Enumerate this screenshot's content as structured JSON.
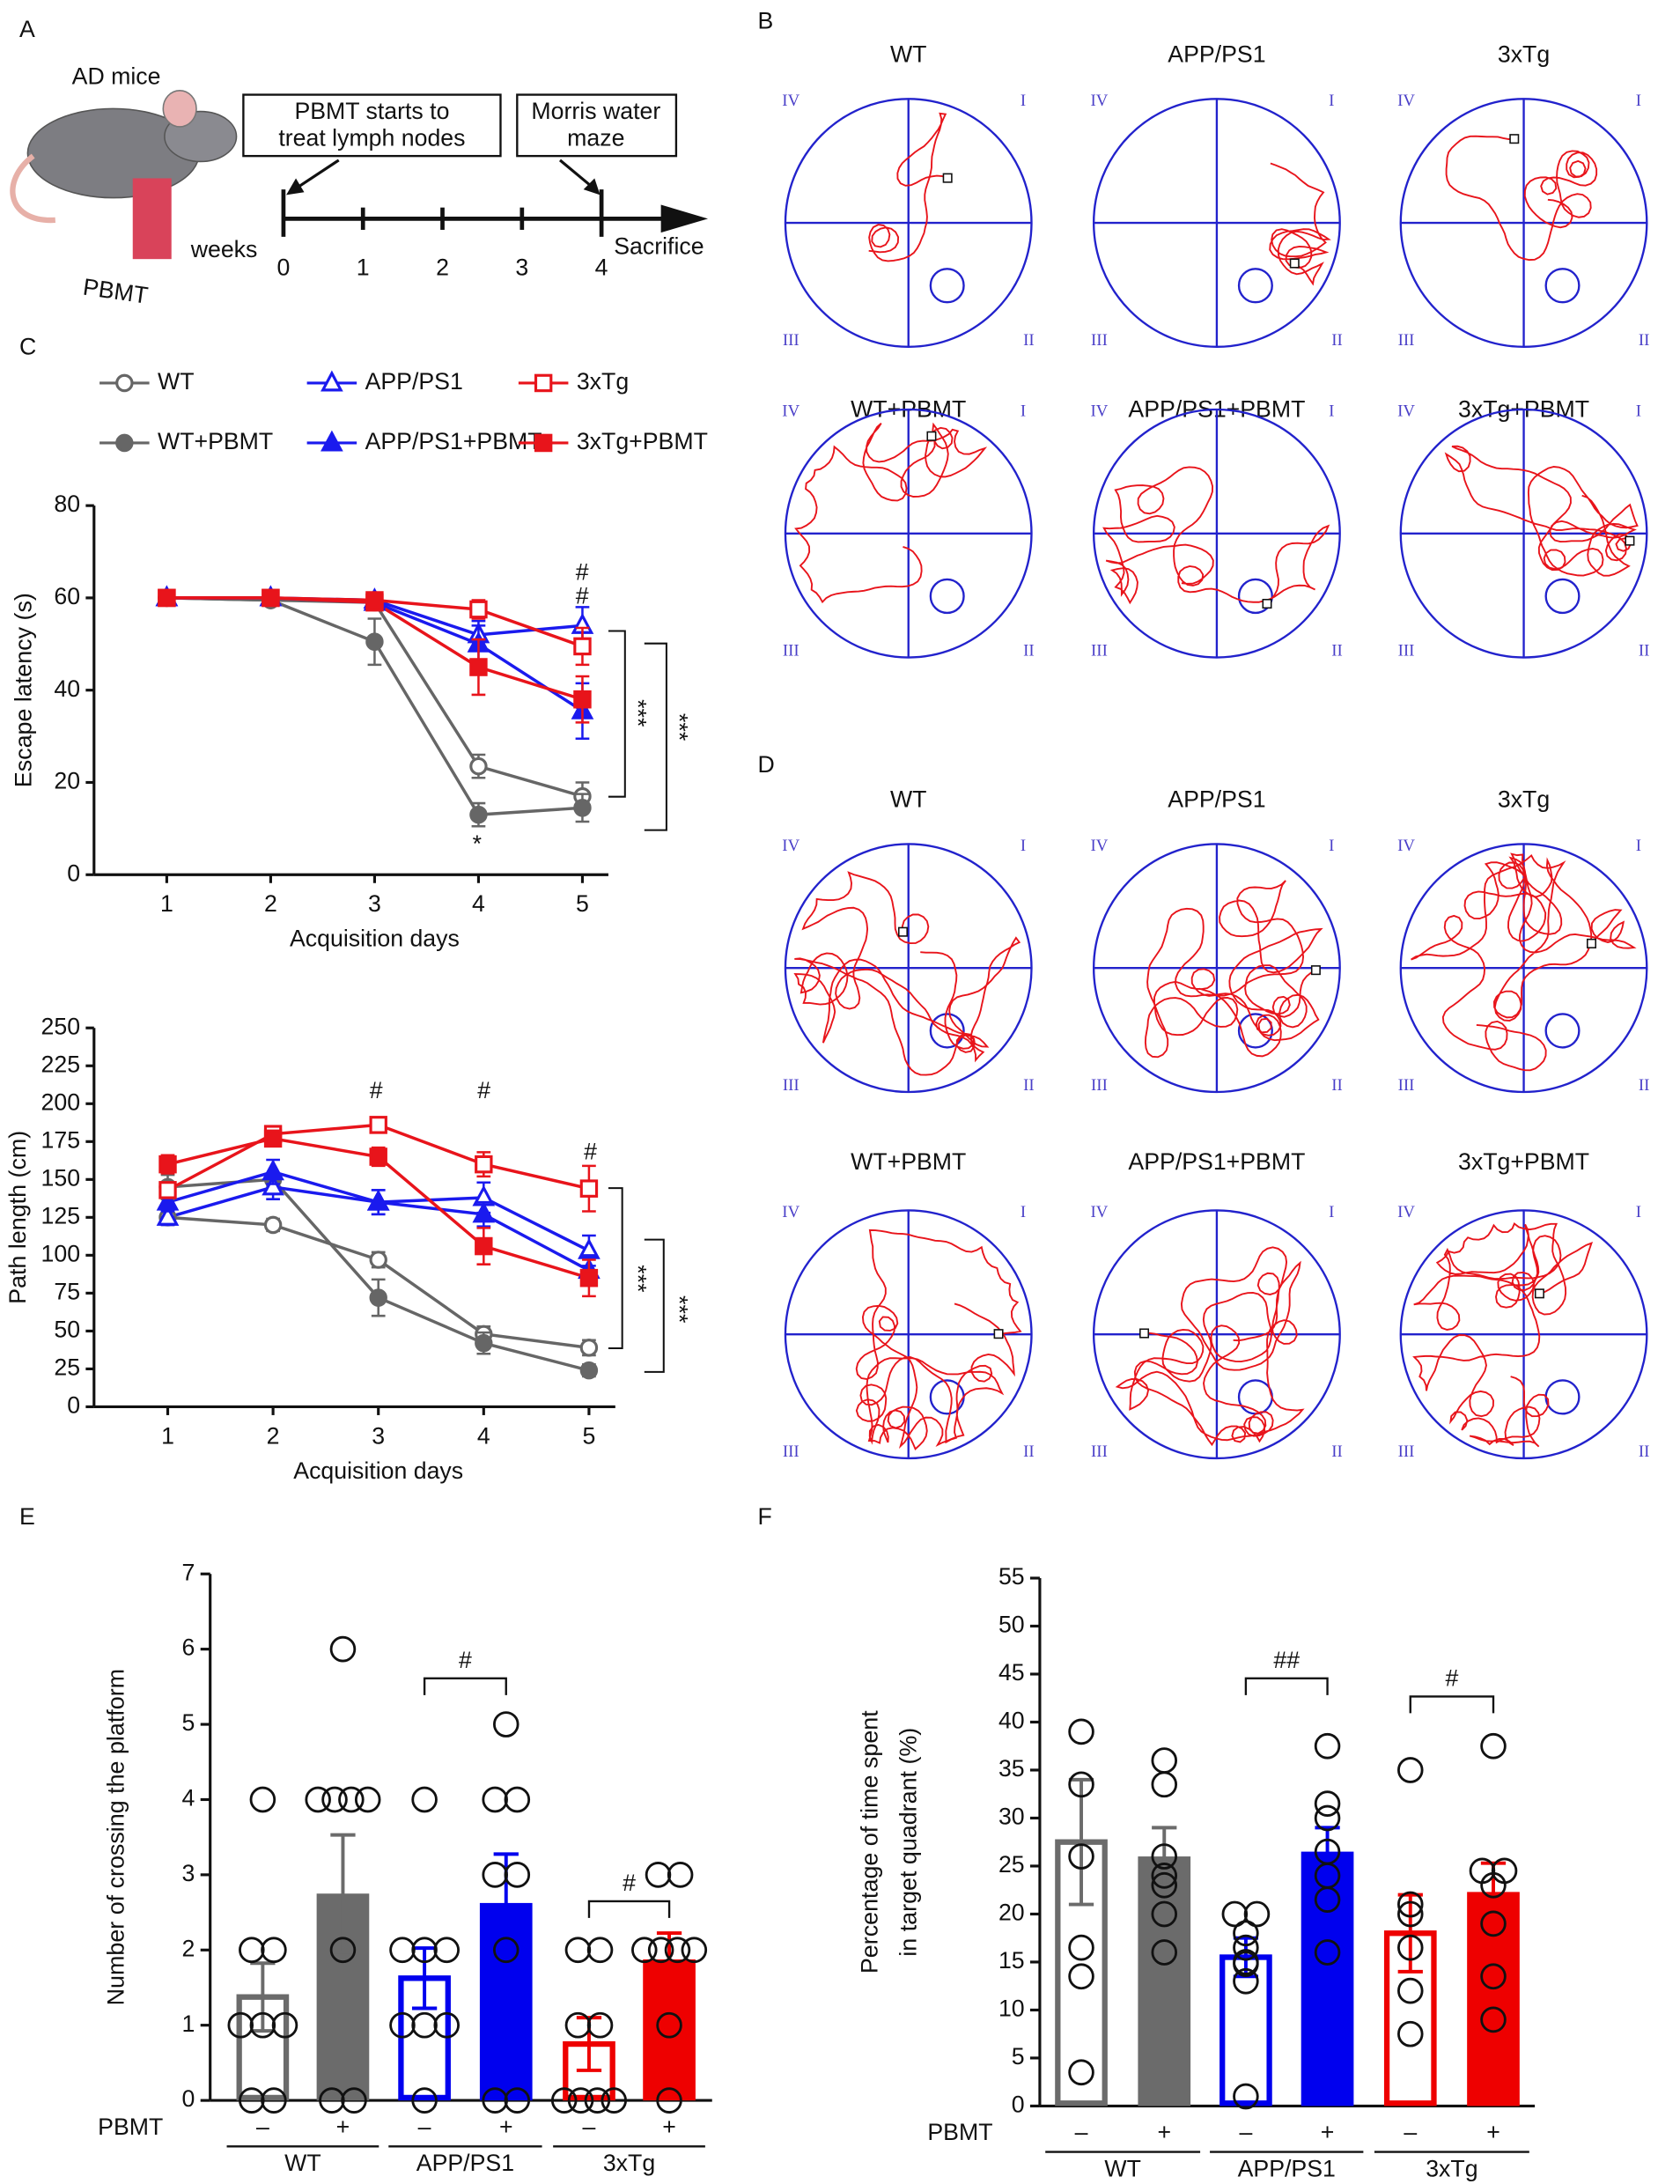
{
  "panel_labels": [
    "A",
    "B",
    "C",
    "D",
    "E",
    "F"
  ],
  "panel_a": {
    "title": "AD mice",
    "treatment": "PBMT",
    "steps": [
      [
        "PBMT starts to",
        "treat lymph nodes"
      ],
      [
        "Morris water",
        "maze"
      ]
    ],
    "axis_label": "weeks",
    "ticks": [
      0,
      1,
      2,
      3,
      4
    ],
    "end_label": "Sacrifice"
  },
  "mazes": {
    "quadrants": [
      "I",
      "II",
      "III",
      "IV"
    ],
    "B": [
      "WT",
      "APP/PS1",
      "3xTg",
      "WT+PBMT",
      "APP/PS1+PBMT",
      "3xTg+PBMT"
    ],
    "D": [
      "WT",
      "APP/PS1",
      "3xTg",
      "WT+PBMT",
      "APP/PS1+PBMT",
      "3xTg+PBMT"
    ]
  },
  "chart_data": [
    {
      "type": "line",
      "ylabel": "Escape latency (s)",
      "xlabel": "Acquisition days",
      "legend": true,
      "x": [
        1,
        2,
        3,
        4,
        5
      ],
      "xlim": [
        0.3,
        5.25
      ],
      "xticks": [
        1,
        2,
        3,
        4,
        5
      ],
      "ylim": [
        0,
        80
      ],
      "yticks": [
        0,
        20,
        40,
        60,
        80
      ],
      "series": [
        {
          "name": "WT",
          "color": "#666666",
          "marker": "circle",
          "filled": false,
          "values": [
            60,
            59.5,
            59,
            23.5,
            17
          ],
          "errors": [
            0.5,
            0.5,
            1,
            2.5,
            3
          ]
        },
        {
          "name": "WT+PBMT",
          "color": "#666666",
          "marker": "circle",
          "filled": true,
          "values": [
            60,
            59.5,
            50.5,
            13,
            14.5
          ],
          "errors": [
            0.5,
            0.5,
            5,
            2.5,
            3
          ]
        },
        {
          "name": "APP/PS1",
          "color": "#1a1aee",
          "marker": "triangle",
          "filled": false,
          "values": [
            60,
            60,
            59.5,
            52,
            54
          ],
          "errors": [
            0.5,
            0.5,
            1,
            3,
            4
          ]
        },
        {
          "name": "APP/PS1+PBMT",
          "color": "#1a1aee",
          "marker": "triangle",
          "filled": true,
          "values": [
            60,
            60,
            59,
            50,
            35.5
          ],
          "errors": [
            0.5,
            0.5,
            1,
            4,
            6
          ]
        },
        {
          "name": "3xTg",
          "color": "#e8141b",
          "marker": "square",
          "filled": false,
          "values": [
            60,
            60,
            59.5,
            57.5,
            49.5
          ],
          "errors": [
            0.5,
            0.5,
            1,
            2,
            4
          ]
        },
        {
          "name": "3xTg+PBMT",
          "color": "#e8141b",
          "marker": "square",
          "filled": true,
          "values": [
            60,
            60,
            59,
            45,
            38
          ],
          "errors": [
            0.5,
            0.5,
            1,
            6,
            5
          ]
        }
      ],
      "annotations": [
        {
          "text": "#",
          "color": "#e8141b"
        },
        {
          "text": "#",
          "color": "#1a1aee"
        },
        {
          "text": "*",
          "color": "#666666"
        },
        {
          "text": "***",
          "color": "#111111"
        },
        {
          "text": "***",
          "color": "#111111"
        }
      ]
    },
    {
      "type": "line",
      "ylabel": "Path length (cm)",
      "xlabel": "Acquisition days",
      "legend": false,
      "x": [
        1,
        2,
        3,
        4,
        5
      ],
      "xlim": [
        0.3,
        5.25
      ],
      "xticks": [
        1,
        2,
        3,
        4,
        5
      ],
      "ylim": [
        0,
        250
      ],
      "yticks": [
        0,
        25,
        50,
        75,
        100,
        125,
        150,
        175,
        200,
        225,
        250
      ],
      "series": [
        {
          "color": "#666666",
          "marker": "circle",
          "filled": false,
          "values": [
            125,
            120,
            97,
            48,
            39
          ],
          "errors": [
            5,
            4,
            5,
            5,
            5
          ]
        },
        {
          "color": "#666666",
          "marker": "circle",
          "filled": true,
          "values": [
            145,
            150,
            72,
            42,
            24
          ],
          "errors": [
            8,
            4,
            12,
            7,
            4
          ]
        },
        {
          "color": "#1a1aee",
          "marker": "triangle",
          "filled": false,
          "values": [
            125,
            145,
            135,
            138,
            103
          ],
          "errors": [
            5,
            8,
            8,
            10,
            10
          ]
        },
        {
          "color": "#1a1aee",
          "marker": "triangle",
          "filled": true,
          "values": [
            135,
            155,
            135,
            127,
            90
          ],
          "errors": [
            6,
            8,
            8,
            8,
            10
          ]
        },
        {
          "color": "#e8141b",
          "marker": "square",
          "filled": false,
          "values": [
            143,
            180,
            186,
            160,
            144
          ],
          "errors": [
            5,
            5,
            5,
            8,
            15
          ]
        },
        {
          "color": "#e8141b",
          "marker": "square",
          "filled": true,
          "values": [
            160,
            177,
            165,
            106,
            85
          ],
          "errors": [
            6,
            5,
            6,
            12,
            12
          ]
        }
      ],
      "annotations": [
        {
          "text": "#",
          "color": "#e8141b"
        },
        {
          "text": "#",
          "color": "#e8141b"
        },
        {
          "text": "#",
          "color": "#e8141b"
        },
        {
          "text": "***",
          "color": "#111111"
        },
        {
          "text": "***",
          "color": "#111111"
        }
      ]
    },
    {
      "type": "bar",
      "ylabel": [
        "Number of crossing the platform"
      ],
      "row_label": "PBMT",
      "categories": [
        "–",
        "+",
        "–",
        "+",
        "–",
        "+"
      ],
      "groups": [
        "WT",
        "APP/PS1",
        "3xTg"
      ],
      "values": [
        1.375,
        2.75,
        1.625,
        2.625,
        0.75,
        1.875
      ],
      "errors": [
        0.45,
        0.78,
        0.4,
        0.65,
        0.35,
        0.35
      ],
      "colors": [
        "#6b6b6b",
        "#6b6b6b",
        "#0000ee",
        "#0000ee",
        "#ee0000",
        "#ee0000"
      ],
      "filled": [
        false,
        true,
        false,
        true,
        false,
        true
      ],
      "points": [
        [
          0,
          0,
          1,
          1,
          1,
          2,
          2,
          4
        ],
        [
          0,
          0,
          2,
          4,
          4,
          4,
          4,
          6
        ],
        [
          0,
          1,
          1,
          1,
          2,
          2,
          2,
          4
        ],
        [
          0,
          0,
          2,
          3,
          3,
          4,
          4,
          5
        ],
        [
          0,
          0,
          0,
          0,
          1,
          1,
          2,
          2
        ],
        [
          0,
          1,
          2,
          2,
          2,
          2,
          3,
          3
        ]
      ],
      "ylim": [
        0,
        7
      ],
      "yticks": [
        0,
        1,
        2,
        3,
        4,
        5,
        6,
        7
      ],
      "annotations": [
        {
          "text": "#",
          "color": "#111111"
        },
        {
          "text": "#",
          "color": "#111111"
        }
      ]
    },
    {
      "type": "bar",
      "ylabel": [
        "Percentage of time spent",
        "in target quadrant (%)"
      ],
      "row_label": "PBMT",
      "categories": [
        "–",
        "+",
        "–",
        "+",
        "–",
        "+"
      ],
      "groups": [
        "WT",
        "APP/PS1",
        "3xTg"
      ],
      "values": [
        27.5,
        26,
        15.5,
        26.5,
        18,
        22.3
      ],
      "errors": [
        6.5,
        3,
        2,
        2.5,
        4,
        3
      ],
      "colors": [
        "#6b6b6b",
        "#6b6b6b",
        "#0000ee",
        "#0000ee",
        "#ee0000",
        "#ee0000"
      ],
      "filled": [
        false,
        true,
        false,
        true,
        false,
        true
      ],
      "points": [
        [
          3.5,
          13.5,
          16.5,
          26,
          33.5,
          39
        ],
        [
          16,
          20,
          23,
          24,
          26,
          33.5,
          36
        ],
        [
          1,
          13,
          14.8,
          15,
          16.5,
          18,
          20,
          20
        ],
        [
          16,
          21.5,
          24,
          26.5,
          30,
          31.5,
          37.5
        ],
        [
          7.5,
          12,
          16.5,
          20,
          21,
          35
        ],
        [
          9,
          13.5,
          19,
          23,
          24.5,
          24.5,
          37.5
        ]
      ],
      "ylim": [
        0,
        55
      ],
      "yticks": [
        0,
        5,
        10,
        15,
        20,
        25,
        30,
        35,
        40,
        45,
        50,
        55
      ],
      "annotations": [
        {
          "text": "##",
          "color": "#111111"
        },
        {
          "text": "#",
          "color": "#111111"
        }
      ]
    }
  ]
}
